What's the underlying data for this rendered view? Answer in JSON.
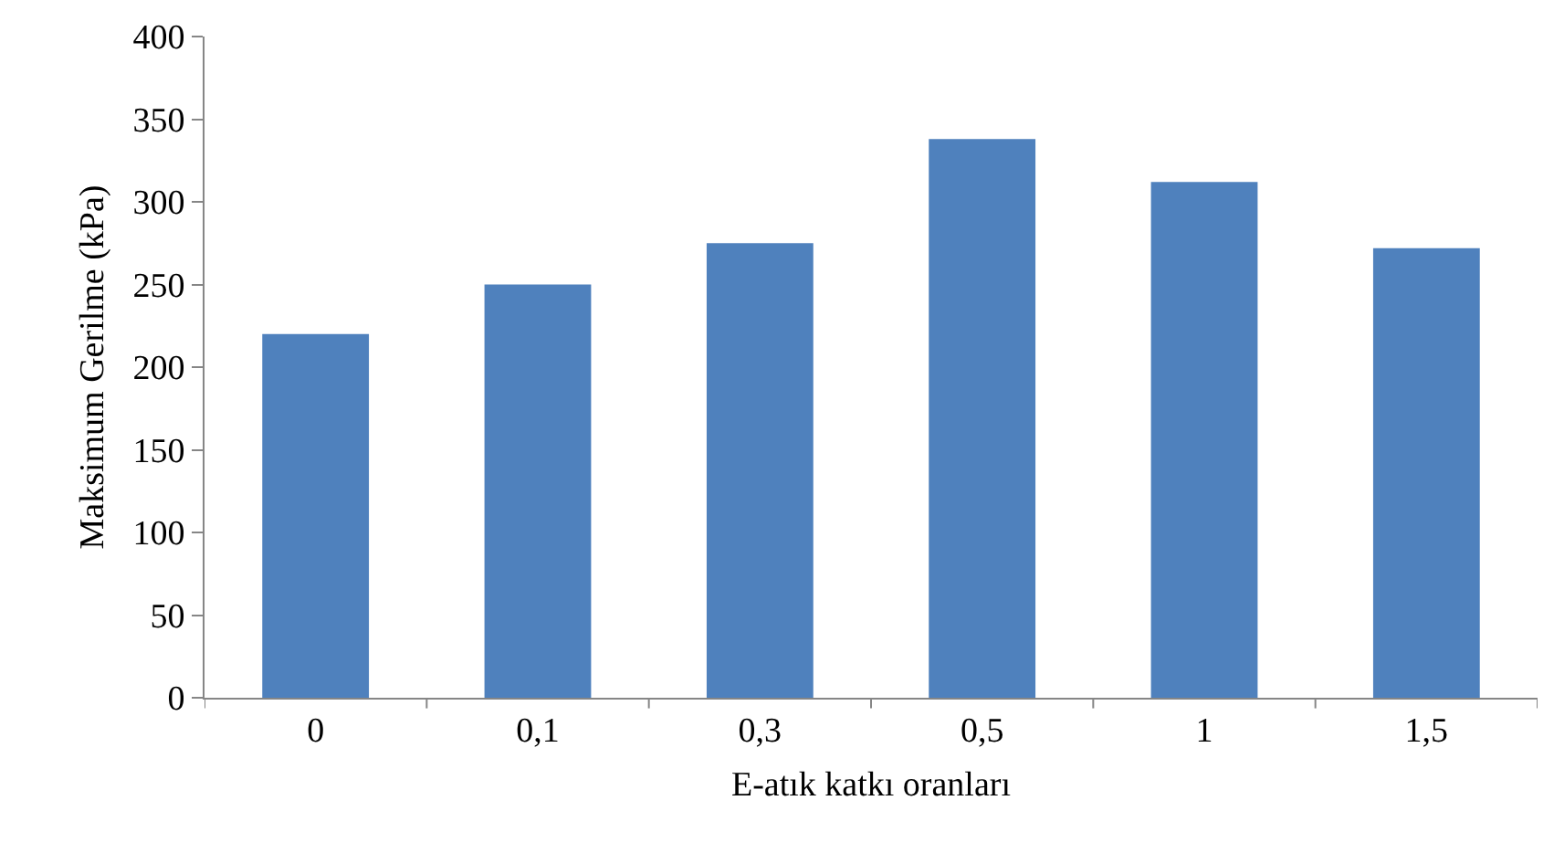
{
  "chart_data": {
    "type": "bar",
    "xlabel": "E-atık katkı oranları",
    "ylabel": "Maksimum Gerilme (kPa)",
    "categories": [
      "0",
      "0,1",
      "0,3",
      "0,5",
      "1",
      "1,5"
    ],
    "values": [
      220,
      250,
      275,
      338,
      312,
      272
    ],
    "color": "#4f81bd",
    "ylim": [
      0,
      400
    ],
    "yticks": [
      0,
      50,
      100,
      150,
      200,
      250,
      300,
      350,
      400
    ],
    "grid": false
  }
}
